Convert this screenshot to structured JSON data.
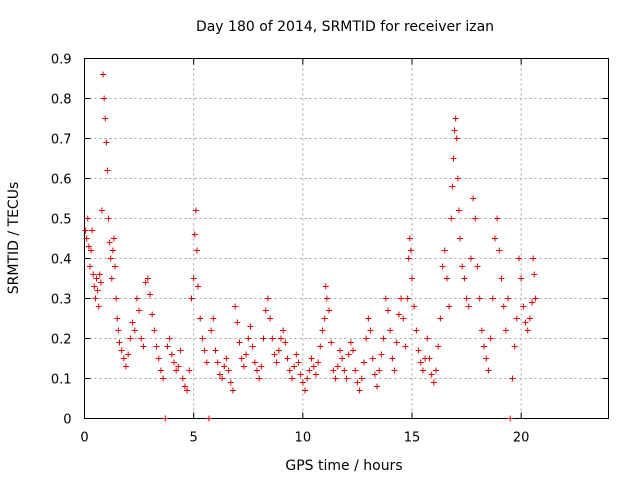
{
  "chart_data": {
    "type": "scatter",
    "title": "Day 180 of 2014, SRMTID for receiver izan",
    "xlabel": "GPS time / hours",
    "ylabel": "SRMTID / TECUs",
    "xlim": [
      0,
      24
    ],
    "ylim": [
      0,
      0.9
    ],
    "xticks": [
      0,
      5,
      10,
      15,
      20
    ],
    "yticks": [
      0,
      0.1,
      0.2,
      0.3,
      0.4,
      0.5,
      0.6,
      0.7,
      0.8,
      0.9
    ],
    "xtick_labels": [
      "0",
      "5",
      "10",
      "15",
      "20"
    ],
    "ytick_labels": [
      "0",
      "0.1",
      "0.2",
      "0.3",
      "0.4",
      "0.5",
      "0.6",
      "0.7",
      "0.8",
      "0.9"
    ],
    "grid": true,
    "marker": "+",
    "marker_color": "#e00000",
    "series": [
      {
        "name": "SRMTID",
        "points": [
          [
            0.05,
            0.47
          ],
          [
            0.1,
            0.45
          ],
          [
            0.15,
            0.5
          ],
          [
            0.2,
            0.43
          ],
          [
            0.25,
            0.38
          ],
          [
            0.3,
            0.42
          ],
          [
            0.35,
            0.47
          ],
          [
            0.4,
            0.36
          ],
          [
            0.45,
            0.33
          ],
          [
            0.5,
            0.3
          ],
          [
            0.55,
            0.35
          ],
          [
            0.6,
            0.32
          ],
          [
            0.65,
            0.28
          ],
          [
            0.7,
            0.36
          ],
          [
            0.75,
            0.34
          ],
          [
            0.8,
            0.52
          ],
          [
            0.85,
            0.86
          ],
          [
            0.9,
            0.8
          ],
          [
            0.95,
            0.75
          ],
          [
            1.0,
            0.69
          ],
          [
            1.05,
            0.62
          ],
          [
            1.1,
            0.5
          ],
          [
            1.15,
            0.44
          ],
          [
            1.2,
            0.4
          ],
          [
            1.25,
            0.35
          ],
          [
            1.3,
            0.42
          ],
          [
            1.35,
            0.45
          ],
          [
            1.4,
            0.38
          ],
          [
            1.45,
            0.3
          ],
          [
            1.5,
            0.25
          ],
          [
            1.55,
            0.22
          ],
          [
            1.6,
            0.19
          ],
          [
            1.7,
            0.17
          ],
          [
            1.8,
            0.15
          ],
          [
            1.9,
            0.13
          ],
          [
            2.0,
            0.16
          ],
          [
            2.1,
            0.2
          ],
          [
            2.2,
            0.24
          ],
          [
            2.3,
            0.22
          ],
          [
            2.4,
            0.3
          ],
          [
            2.5,
            0.27
          ],
          [
            2.6,
            0.2
          ],
          [
            2.7,
            0.18
          ],
          [
            2.8,
            0.34
          ],
          [
            2.9,
            0.35
          ],
          [
            3.0,
            0.31
          ],
          [
            3.1,
            0.26
          ],
          [
            3.2,
            0.22
          ],
          [
            3.3,
            0.18
          ],
          [
            3.4,
            0.15
          ],
          [
            3.5,
            0.12
          ],
          [
            3.6,
            0.1
          ],
          [
            3.7,
            0.0
          ],
          [
            3.8,
            0.18
          ],
          [
            3.9,
            0.2
          ],
          [
            4.0,
            0.16
          ],
          [
            4.1,
            0.14
          ],
          [
            4.2,
            0.12
          ],
          [
            4.3,
            0.13
          ],
          [
            4.4,
            0.17
          ],
          [
            4.5,
            0.1
          ],
          [
            4.6,
            0.08
          ],
          [
            4.7,
            0.07
          ],
          [
            4.8,
            0.12
          ],
          [
            4.9,
            0.3
          ],
          [
            5.0,
            0.35
          ],
          [
            5.05,
            0.46
          ],
          [
            5.1,
            0.52
          ],
          [
            5.15,
            0.42
          ],
          [
            5.2,
            0.33
          ],
          [
            5.3,
            0.25
          ],
          [
            5.4,
            0.2
          ],
          [
            5.5,
            0.17
          ],
          [
            5.6,
            0.14
          ],
          [
            5.7,
            0.0
          ],
          [
            5.8,
            0.22
          ],
          [
            5.9,
            0.25
          ],
          [
            6.0,
            0.17
          ],
          [
            6.1,
            0.14
          ],
          [
            6.2,
            0.11
          ],
          [
            6.3,
            0.1
          ],
          [
            6.4,
            0.13
          ],
          [
            6.5,
            0.15
          ],
          [
            6.6,
            0.12
          ],
          [
            6.7,
            0.09
          ],
          [
            6.8,
            0.07
          ],
          [
            6.9,
            0.28
          ],
          [
            7.0,
            0.24
          ],
          [
            7.1,
            0.19
          ],
          [
            7.2,
            0.15
          ],
          [
            7.3,
            0.13
          ],
          [
            7.4,
            0.16
          ],
          [
            7.5,
            0.2
          ],
          [
            7.6,
            0.23
          ],
          [
            7.7,
            0.18
          ],
          [
            7.8,
            0.14
          ],
          [
            7.9,
            0.12
          ],
          [
            8.0,
            0.1
          ],
          [
            8.1,
            0.13
          ],
          [
            8.2,
            0.2
          ],
          [
            8.3,
            0.27
          ],
          [
            8.4,
            0.3
          ],
          [
            8.5,
            0.25
          ],
          [
            8.6,
            0.2
          ],
          [
            8.7,
            0.16
          ],
          [
            8.8,
            0.14
          ],
          [
            8.9,
            0.17
          ],
          [
            9.0,
            0.2
          ],
          [
            9.1,
            0.22
          ],
          [
            9.2,
            0.19
          ],
          [
            9.3,
            0.15
          ],
          [
            9.4,
            0.12
          ],
          [
            9.5,
            0.1
          ],
          [
            9.6,
            0.13
          ],
          [
            9.7,
            0.16
          ],
          [
            9.8,
            0.14
          ],
          [
            9.9,
            0.11
          ],
          [
            10.0,
            0.09
          ],
          [
            10.1,
            0.07
          ],
          [
            10.2,
            0.1
          ],
          [
            10.3,
            0.12
          ],
          [
            10.4,
            0.15
          ],
          [
            10.5,
            0.13
          ],
          [
            10.6,
            0.11
          ],
          [
            10.7,
            0.14
          ],
          [
            10.8,
            0.18
          ],
          [
            10.9,
            0.22
          ],
          [
            11.0,
            0.25
          ],
          [
            11.05,
            0.33
          ],
          [
            11.1,
            0.3
          ],
          [
            11.2,
            0.27
          ],
          [
            11.3,
            0.19
          ],
          [
            11.4,
            0.12
          ],
          [
            11.5,
            0.1
          ],
          [
            11.6,
            0.13
          ],
          [
            11.7,
            0.17
          ],
          [
            11.8,
            0.15
          ],
          [
            11.9,
            0.12
          ],
          [
            12.0,
            0.1
          ],
          [
            12.1,
            0.16
          ],
          [
            12.2,
            0.19
          ],
          [
            12.3,
            0.17
          ],
          [
            12.4,
            0.12
          ],
          [
            12.5,
            0.09
          ],
          [
            12.6,
            0.07
          ],
          [
            12.7,
            0.1
          ],
          [
            12.8,
            0.14
          ],
          [
            12.9,
            0.2
          ],
          [
            13.0,
            0.25
          ],
          [
            13.1,
            0.22
          ],
          [
            13.2,
            0.15
          ],
          [
            13.3,
            0.11
          ],
          [
            13.4,
            0.08
          ],
          [
            13.5,
            0.12
          ],
          [
            13.6,
            0.16
          ],
          [
            13.7,
            0.2
          ],
          [
            13.8,
            0.3
          ],
          [
            13.9,
            0.27
          ],
          [
            14.0,
            0.22
          ],
          [
            14.1,
            0.15
          ],
          [
            14.2,
            0.12
          ],
          [
            14.3,
            0.19
          ],
          [
            14.4,
            0.26
          ],
          [
            14.5,
            0.3
          ],
          [
            14.6,
            0.25
          ],
          [
            14.7,
            0.18
          ],
          [
            14.8,
            0.3
          ],
          [
            14.85,
            0.4
          ],
          [
            14.9,
            0.45
          ],
          [
            14.95,
            0.42
          ],
          [
            15.0,
            0.35
          ],
          [
            15.1,
            0.28
          ],
          [
            15.2,
            0.22
          ],
          [
            15.3,
            0.17
          ],
          [
            15.4,
            0.14
          ],
          [
            15.5,
            0.12
          ],
          [
            15.6,
            0.15
          ],
          [
            15.7,
            0.2
          ],
          [
            15.8,
            0.15
          ],
          [
            15.9,
            0.11
          ],
          [
            16.0,
            0.09
          ],
          [
            16.1,
            0.12
          ],
          [
            16.2,
            0.18
          ],
          [
            16.3,
            0.25
          ],
          [
            16.4,
            0.38
          ],
          [
            16.5,
            0.42
          ],
          [
            16.6,
            0.35
          ],
          [
            16.7,
            0.28
          ],
          [
            16.8,
            0.5
          ],
          [
            16.85,
            0.58
          ],
          [
            16.9,
            0.65
          ],
          [
            16.95,
            0.72
          ],
          [
            17.0,
            0.75
          ],
          [
            17.05,
            0.7
          ],
          [
            17.1,
            0.6
          ],
          [
            17.15,
            0.52
          ],
          [
            17.2,
            0.45
          ],
          [
            17.3,
            0.38
          ],
          [
            17.4,
            0.35
          ],
          [
            17.5,
            0.3
          ],
          [
            17.6,
            0.28
          ],
          [
            17.7,
            0.4
          ],
          [
            17.8,
            0.55
          ],
          [
            17.9,
            0.5
          ],
          [
            18.0,
            0.38
          ],
          [
            18.1,
            0.3
          ],
          [
            18.2,
            0.22
          ],
          [
            18.3,
            0.18
          ],
          [
            18.4,
            0.15
          ],
          [
            18.5,
            0.12
          ],
          [
            18.6,
            0.2
          ],
          [
            18.7,
            0.3
          ],
          [
            18.8,
            0.45
          ],
          [
            18.9,
            0.5
          ],
          [
            19.0,
            0.42
          ],
          [
            19.1,
            0.35
          ],
          [
            19.2,
            0.28
          ],
          [
            19.3,
            0.22
          ],
          [
            19.4,
            0.3
          ],
          [
            19.5,
            0.0
          ],
          [
            19.6,
            0.1
          ],
          [
            19.7,
            0.18
          ],
          [
            19.8,
            0.25
          ],
          [
            19.9,
            0.4
          ],
          [
            20.0,
            0.35
          ],
          [
            20.1,
            0.28
          ],
          [
            20.2,
            0.24
          ],
          [
            20.3,
            0.22
          ],
          [
            20.4,
            0.25
          ],
          [
            20.5,
            0.29
          ],
          [
            20.55,
            0.4
          ],
          [
            20.6,
            0.36
          ],
          [
            20.65,
            0.3
          ]
        ]
      }
    ]
  }
}
